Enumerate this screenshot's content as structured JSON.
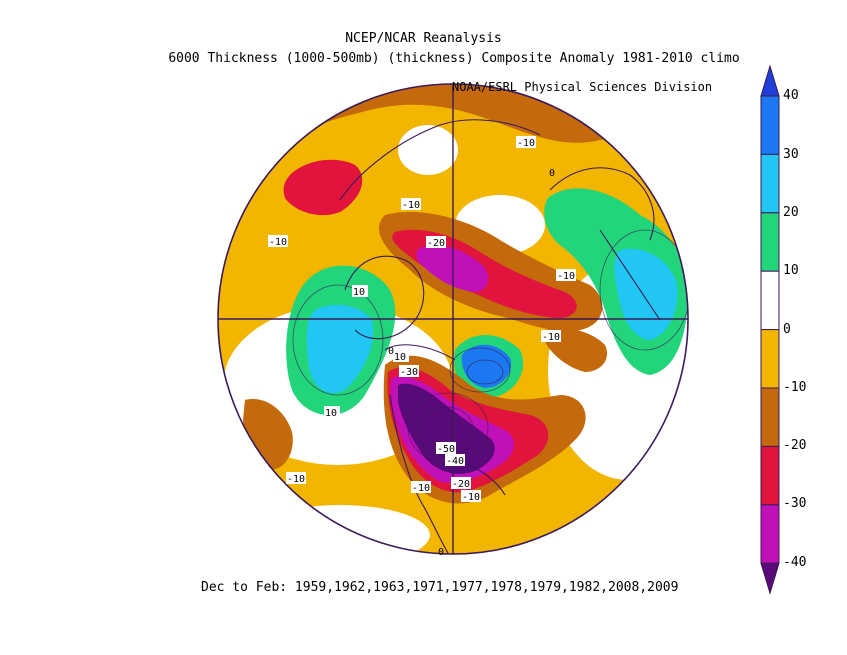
{
  "header": {
    "title": "NCEP/NCAR Reanalysis",
    "subtitle": "6000 Thickness (1000-500mb) (thickness) Composite Anomaly 1981-2010 climo",
    "credit": "NOAA/ESRL Physical Sciences Division"
  },
  "footer": {
    "period": "Dec to Feb: 1959,1962,1963,1971,1977,1978,1979,1982,2008,2009"
  },
  "colorbar": {
    "labels": [
      "40",
      "30",
      "20",
      "10",
      "0",
      "-10",
      "-20",
      "-30",
      "-40"
    ],
    "colors": [
      "#1f3fd8",
      "#1b78f0",
      "#22c6f2",
      "#22d47a",
      "#ffffff",
      "#f2b600",
      "#c46a0d",
      "#e0143c",
      "#c010b8",
      "#580a78"
    ]
  },
  "map": {
    "projection": "north-polar-stereographic",
    "contour_labels": [
      "-10",
      "-10",
      "-10",
      "-10",
      "-10",
      "-20",
      "-10",
      "0",
      "10",
      "10",
      "10",
      "0",
      "-30",
      "-50",
      "-40",
      "-20",
      "-10",
      "-10",
      "0"
    ]
  }
}
